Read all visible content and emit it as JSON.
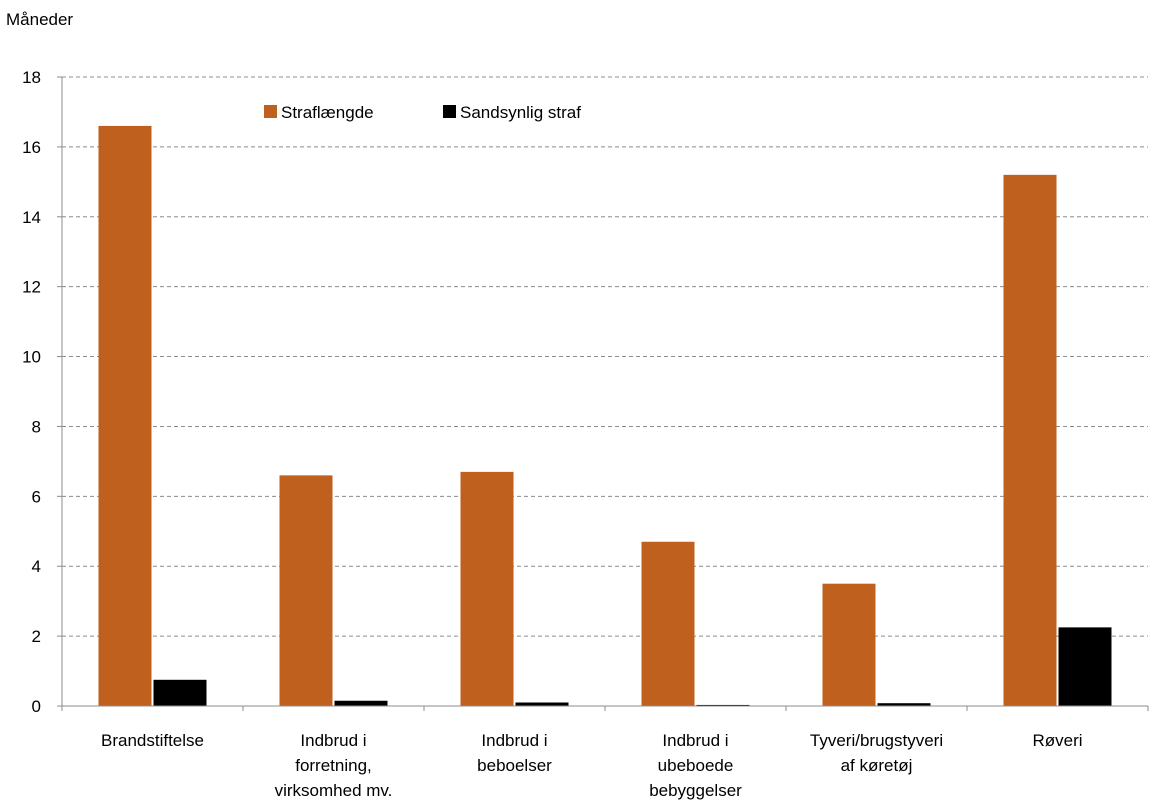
{
  "chart_data": {
    "type": "bar",
    "ylabel": "Måneder",
    "ylim": [
      0,
      18
    ],
    "yticks": [
      0,
      2,
      4,
      6,
      8,
      10,
      12,
      14,
      16,
      18
    ],
    "grid": true,
    "legend_position": "top-left",
    "categories": [
      [
        "Brandstiftelse"
      ],
      [
        "Indbrud i",
        "forretning,",
        "virksomhed mv."
      ],
      [
        "Indbrud i",
        "beboelser"
      ],
      [
        "Indbrud i",
        "ubeboede",
        "bebyggelser"
      ],
      [
        "Tyveri/brugstyveri",
        "af køretøj"
      ],
      [
        "Røveri"
      ]
    ],
    "series": [
      {
        "name": "Straflængde",
        "color": "#C0601E",
        "values": [
          16.6,
          6.6,
          6.7,
          4.7,
          3.5,
          15.2
        ]
      },
      {
        "name": "Sandsynlig straf",
        "color": "#000000",
        "values": [
          0.75,
          0.15,
          0.1,
          0.03,
          0.08,
          2.25
        ]
      }
    ]
  }
}
